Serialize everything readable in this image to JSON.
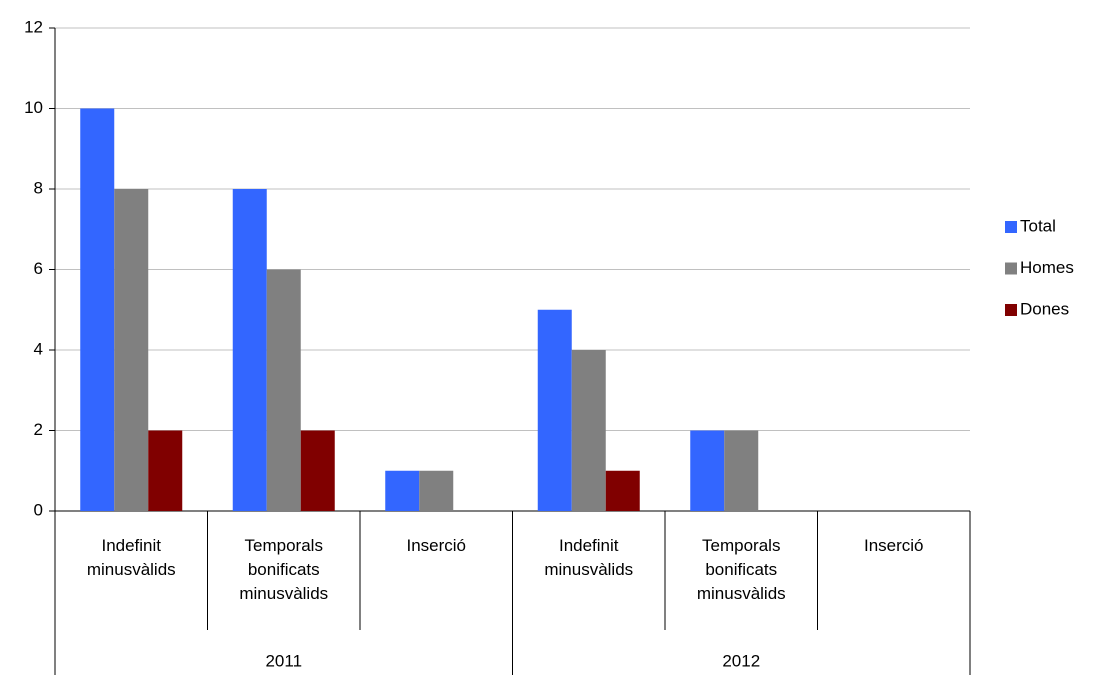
{
  "chart_data": {
    "type": "bar",
    "categories": [
      "Indefinit minusvàlids",
      "Temporals bonificats minusvàlids",
      "Inserció",
      "Indefinit minusvàlids",
      "Temporals bonificats minusvàlids",
      "Inserció"
    ],
    "groups": [
      "2011",
      "2012"
    ],
    "series": [
      {
        "name": "Total",
        "color": "#3366ff",
        "values": [
          10,
          8,
          1,
          5,
          2,
          0
        ]
      },
      {
        "name": "Homes",
        "color": "#808080",
        "values": [
          8,
          6,
          1,
          4,
          2,
          0
        ]
      },
      {
        "name": "Dones",
        "color": "#800000",
        "values": [
          2,
          2,
          0,
          1,
          0,
          0
        ]
      }
    ],
    "ylim": [
      0,
      12
    ],
    "yticks": [
      0,
      2,
      4,
      6,
      8,
      10,
      12
    ],
    "grid": true,
    "legend": "right"
  }
}
